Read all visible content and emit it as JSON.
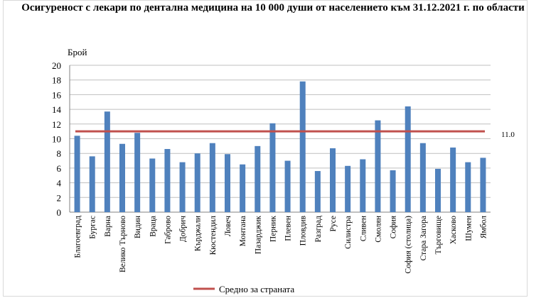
{
  "chart_data": {
    "type": "bar",
    "title": "Осигуреност с лекари по дентална медицина на 10 000 души от населението към 31.12.2021 г. по области",
    "ylabel": "Брой",
    "xlabel": "",
    "ylim": [
      0,
      20
    ],
    "yticks": [
      0,
      2,
      4,
      6,
      8,
      10,
      12,
      14,
      16,
      18,
      20
    ],
    "grid": true,
    "legend_position": "bottom",
    "categories": [
      "Благоевград",
      "Бургас",
      "Варна",
      "Велико Търново",
      "Видин",
      "Враца",
      "Габрово",
      "Добрич",
      "Кърджали",
      "Кюстендил",
      "Ловеч",
      "Монтана",
      "Пазарджик",
      "Перник",
      "Плевен",
      "Пловдив",
      "Разград",
      "Русе",
      "Силистра",
      "Сливен",
      "Смолян",
      "София",
      "София (столица)",
      "Стара Загора",
      "Търговище",
      "Хасково",
      "Шумен",
      "Ямбол"
    ],
    "values": [
      10.4,
      7.6,
      13.7,
      9.3,
      10.8,
      7.3,
      8.6,
      6.8,
      8.0,
      9.4,
      7.9,
      6.5,
      9.0,
      12.1,
      7.0,
      17.8,
      5.6,
      8.7,
      6.3,
      7.2,
      12.5,
      5.7,
      14.4,
      9.4,
      5.9,
      8.8,
      6.8,
      7.4
    ],
    "series": [
      {
        "name": "Средно за страната",
        "type": "line",
        "value": 11.0,
        "label": "11.0",
        "color": "#c0504d"
      }
    ],
    "bar_color": "#4f81bd"
  }
}
